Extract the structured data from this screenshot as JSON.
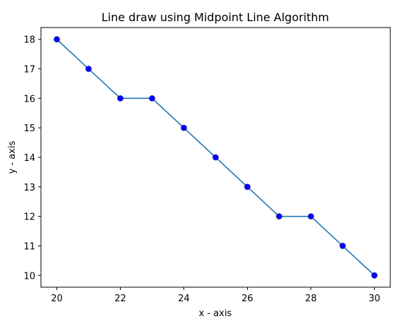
{
  "chart_data": {
    "type": "line",
    "title": "Line draw using Midpoint Line Algorithm",
    "xlabel": "x - axis",
    "ylabel": "y - axis",
    "x": [
      20,
      21,
      22,
      23,
      24,
      25,
      26,
      27,
      28,
      29,
      30
    ],
    "series": [
      {
        "values": [
          18,
          17,
          16,
          16,
          15,
          14,
          13,
          12,
          12,
          11,
          10
        ],
        "line_color": "#1f77b4",
        "marker_color": "#0000ff",
        "marker": "circle"
      }
    ],
    "xlim": [
      19.5,
      30.5
    ],
    "ylim": [
      9.6,
      18.4
    ],
    "x_ticks": [
      20,
      22,
      24,
      26,
      28,
      30
    ],
    "y_ticks": [
      10,
      11,
      12,
      13,
      14,
      15,
      16,
      17,
      18
    ],
    "grid": false,
    "legend": "none"
  }
}
